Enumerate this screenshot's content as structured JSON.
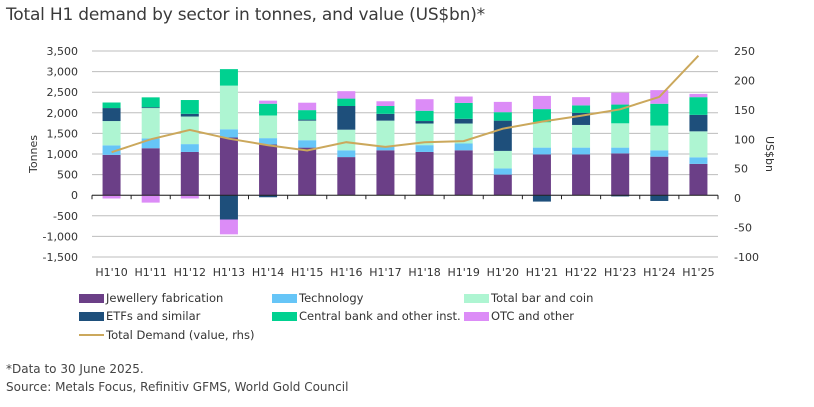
{
  "chart_data": {
    "type": "bar",
    "stacked": true,
    "title": "Total H1 demand by sector in tonnes, and value (US$bn)*",
    "ylabel": "Tonnes",
    "y2label": "US$bn",
    "ylim": [
      -1500,
      3500
    ],
    "yticks": [
      -1500,
      -1000,
      -500,
      0,
      500,
      1000,
      1500,
      2000,
      2500,
      3000,
      3500
    ],
    "ytick_labels": [
      "-1,500",
      "-1,000",
      "-500",
      "0",
      "500",
      "1,000",
      "1,500",
      "2,000",
      "2,500",
      "3,000",
      "3,500"
    ],
    "y2lim": [
      -100,
      250
    ],
    "y2ticks": [
      -100,
      -50,
      0,
      50,
      100,
      150,
      200,
      250
    ],
    "grid": true,
    "legend_position": "bottom",
    "categories": [
      "H1'10",
      "H1'11",
      "H1'12",
      "H1'13",
      "H1'14",
      "H1'15",
      "H1'16",
      "H1'17",
      "H1'18",
      "H1'19",
      "H1'20",
      "H1'21",
      "H1'22",
      "H1'23",
      "H1'24",
      "H1'25"
    ],
    "series": [
      {
        "name": "Jewellery fabrication",
        "color": "#6b3f87",
        "values": [
          980,
          1140,
          1050,
          1400,
          1230,
          1155,
          925,
          1090,
          1050,
          1090,
          500,
          990,
          990,
          1015,
          935,
          760
        ]
      },
      {
        "name": "Technology",
        "color": "#66c5f7",
        "values": [
          230,
          238,
          190,
          200,
          155,
          180,
          165,
          90,
          165,
          165,
          150,
          165,
          165,
          140,
          155,
          160
        ]
      },
      {
        "name": "Total bar and coin",
        "color": "#aef5d2",
        "values": [
          590,
          737,
          670,
          1060,
          550,
          475,
          500,
          630,
          525,
          485,
          425,
          615,
          550,
          590,
          600,
          630
        ]
      },
      {
        "name": "ETFs and similar",
        "color": "#1e4f7b",
        "values": [
          315,
          20,
          65,
          -590,
          -50,
          25,
          575,
          165,
          60,
          115,
          735,
          -155,
          295,
          -30,
          -140,
          400
        ]
      },
      {
        "name": "Central bank and other inst.",
        "color": "#00d190",
        "values": [
          135,
          240,
          335,
          400,
          285,
          230,
          180,
          190,
          250,
          385,
          205,
          320,
          180,
          455,
          530,
          430
        ]
      },
      {
        "name": "OTC and other",
        "color": "#dc8cf7",
        "values": [
          -80,
          -180,
          -80,
          -360,
          75,
          180,
          180,
          115,
          280,
          155,
          250,
          320,
          200,
          290,
          330,
          80
        ]
      }
    ],
    "line_series": {
      "name": "Total Demand (value, rhs)",
      "color": "#cba85c",
      "axis": "right",
      "values": [
        78,
        100,
        116,
        101,
        90,
        81,
        95,
        87,
        95,
        97,
        118,
        130,
        140,
        151,
        172,
        242
      ]
    }
  },
  "footnote": "*Data to 30 June 2025.",
  "source": "Source: Metals Focus, Refinitiv GFMS, World Gold Council"
}
